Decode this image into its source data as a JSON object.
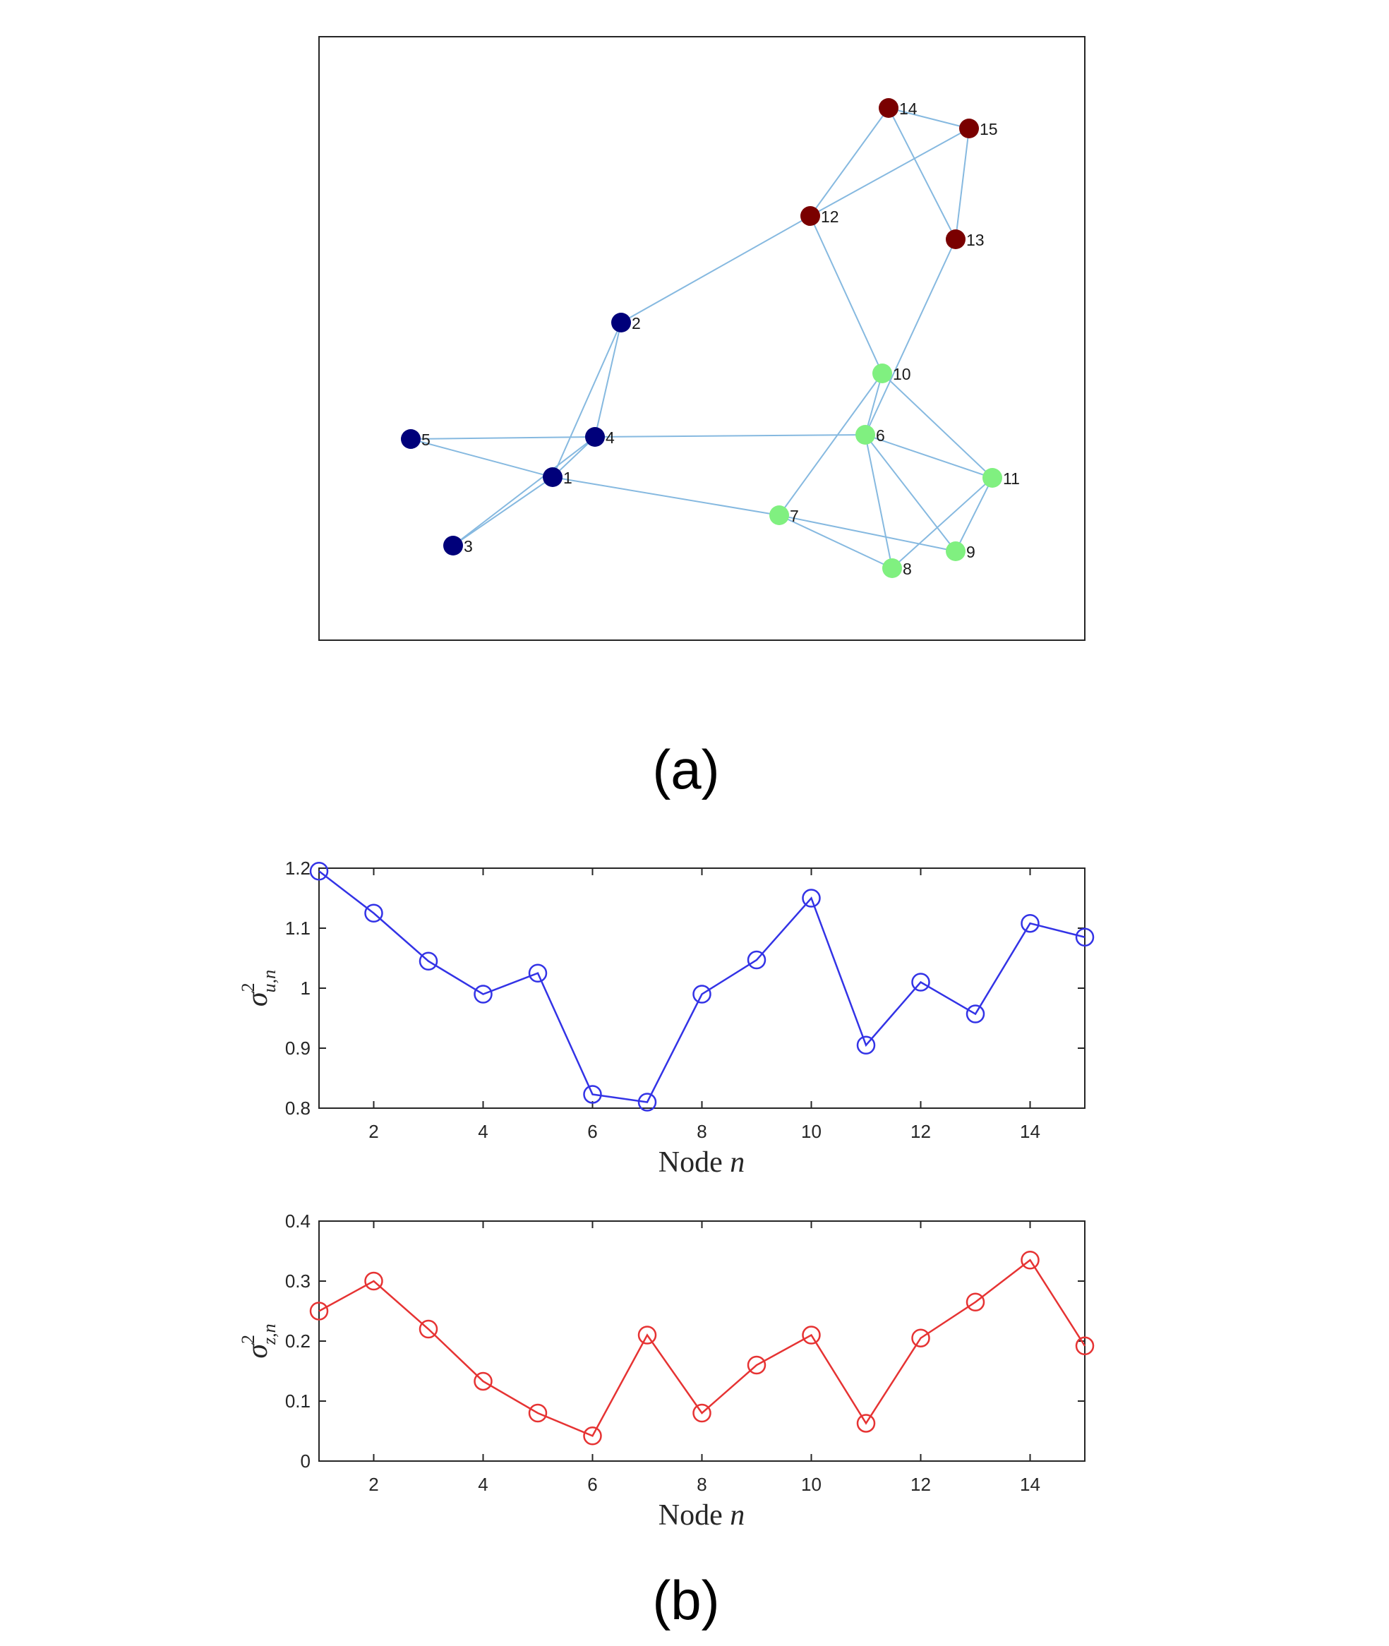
{
  "captions": {
    "a": "(a)",
    "b": "(b)"
  },
  "colors": {
    "edge": "#86b9e0",
    "axis": "#262626",
    "series_u": "#3333e6",
    "series_z": "#e63333",
    "cluster_blue": "#00007a",
    "cluster_green": "#80f080",
    "cluster_red": "#7a0000"
  },
  "chart_data": [
    {
      "type": "network",
      "nodes": [
        {
          "id": "1",
          "cluster": "blue"
        },
        {
          "id": "2",
          "cluster": "blue"
        },
        {
          "id": "3",
          "cluster": "blue"
        },
        {
          "id": "4",
          "cluster": "blue"
        },
        {
          "id": "5",
          "cluster": "blue"
        },
        {
          "id": "6",
          "cluster": "green"
        },
        {
          "id": "7",
          "cluster": "green"
        },
        {
          "id": "8",
          "cluster": "green"
        },
        {
          "id": "9",
          "cluster": "green"
        },
        {
          "id": "10",
          "cluster": "green"
        },
        {
          "id": "11",
          "cluster": "green"
        },
        {
          "id": "12",
          "cluster": "red"
        },
        {
          "id": "13",
          "cluster": "red"
        },
        {
          "id": "14",
          "cluster": "red"
        },
        {
          "id": "15",
          "cluster": "red"
        }
      ],
      "edges": [
        [
          "1",
          "2"
        ],
        [
          "1",
          "3"
        ],
        [
          "1",
          "4"
        ],
        [
          "1",
          "5"
        ],
        [
          "1",
          "7"
        ],
        [
          "2",
          "4"
        ],
        [
          "2",
          "12"
        ],
        [
          "3",
          "4"
        ],
        [
          "4",
          "5"
        ],
        [
          "4",
          "6"
        ],
        [
          "6",
          "8"
        ],
        [
          "6",
          "9"
        ],
        [
          "6",
          "10"
        ],
        [
          "6",
          "11"
        ],
        [
          "6",
          "13"
        ],
        [
          "7",
          "8"
        ],
        [
          "7",
          "9"
        ],
        [
          "7",
          "10"
        ],
        [
          "8",
          "11"
        ],
        [
          "9",
          "11"
        ],
        [
          "10",
          "11"
        ],
        [
          "10",
          "12"
        ],
        [
          "12",
          "14"
        ],
        [
          "12",
          "15"
        ],
        [
          "13",
          "14"
        ],
        [
          "13",
          "15"
        ],
        [
          "14",
          "15"
        ]
      ]
    },
    {
      "type": "line",
      "x": [
        1,
        2,
        3,
        4,
        5,
        6,
        7,
        8,
        9,
        10,
        11,
        12,
        13,
        14,
        15
      ],
      "values": [
        1.195,
        1.125,
        1.045,
        0.99,
        1.025,
        0.823,
        0.81,
        0.99,
        1.047,
        1.15,
        0.905,
        1.01,
        0.957,
        1.108,
        1.085
      ],
      "xlabel": "Node n",
      "ylabel": "σ²u,n",
      "xlim": [
        1,
        15
      ],
      "ylim": [
        0.8,
        1.2
      ],
      "xticks": [
        "2",
        "4",
        "6",
        "8",
        "10",
        "12",
        "14"
      ],
      "yticks": [
        "0.8",
        "0.9",
        "1",
        "1.1",
        "1.2"
      ],
      "grid": false,
      "marker": "circle"
    },
    {
      "type": "line",
      "x": [
        1,
        2,
        3,
        4,
        5,
        6,
        7,
        8,
        9,
        10,
        11,
        12,
        13,
        14,
        15
      ],
      "values": [
        0.25,
        0.3,
        0.22,
        0.133,
        0.08,
        0.042,
        0.21,
        0.08,
        0.16,
        0.21,
        0.063,
        0.205,
        0.265,
        0.335,
        0.192
      ],
      "xlabel": "Node n",
      "ylabel": "σ²z,n",
      "xlim": [
        1,
        15
      ],
      "ylim": [
        0,
        0.4
      ],
      "xticks": [
        "2",
        "4",
        "6",
        "8",
        "10",
        "12",
        "14"
      ],
      "yticks": [
        "0",
        "0.1",
        "0.2",
        "0.3",
        "0.4"
      ],
      "grid": false,
      "marker": "circle"
    }
  ]
}
